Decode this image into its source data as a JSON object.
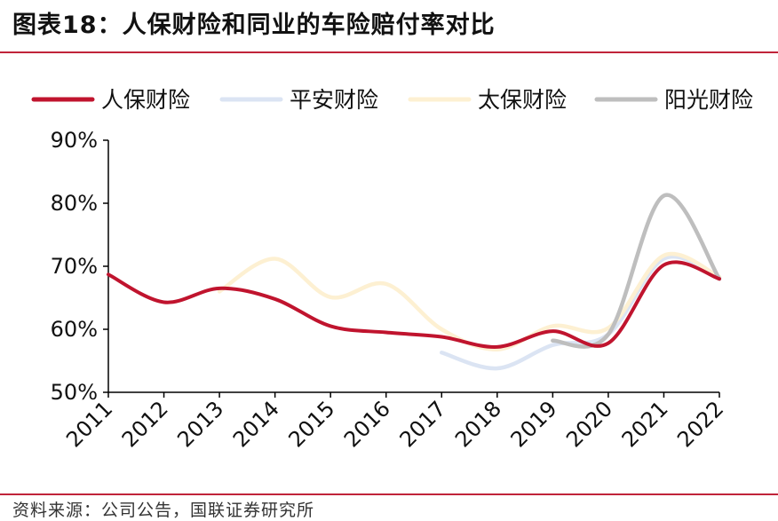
{
  "title": "图表18：人保财险和同业的车险赔付率对比",
  "source": "资料来源：公司公告，国联证券研究所",
  "chart_data": {
    "type": "line",
    "categories": [
      "2011",
      "2012",
      "2013",
      "2014",
      "2015",
      "2016",
      "2017",
      "2018",
      "2019",
      "2020",
      "2021",
      "2022"
    ],
    "ylim": [
      0.5,
      0.9
    ],
    "yticks": [
      "50%",
      "60%",
      "70%",
      "80%",
      "90%"
    ],
    "legend_position": "top",
    "grid": false,
    "series": [
      {
        "name": "人保财险",
        "color": "#c0142e",
        "values": [
          0.687,
          0.643,
          0.665,
          0.648,
          0.605,
          0.595,
          0.588,
          0.572,
          0.597,
          0.578,
          0.702,
          0.68
        ]
      },
      {
        "name": "平安财险",
        "color": "#dbe4f3",
        "values": [
          null,
          null,
          null,
          null,
          null,
          null,
          0.563,
          0.538,
          0.575,
          0.592,
          0.712,
          0.682
        ]
      },
      {
        "name": "太保财险",
        "color": "#fdf0d2",
        "values": [
          null,
          null,
          0.66,
          0.712,
          0.651,
          0.672,
          0.6,
          0.568,
          0.605,
          0.602,
          0.717,
          0.683
        ]
      },
      {
        "name": "阳光财险",
        "color": "#bebebe",
        "values": [
          null,
          null,
          null,
          null,
          null,
          null,
          null,
          null,
          0.582,
          0.592,
          0.812,
          0.68
        ]
      }
    ]
  }
}
